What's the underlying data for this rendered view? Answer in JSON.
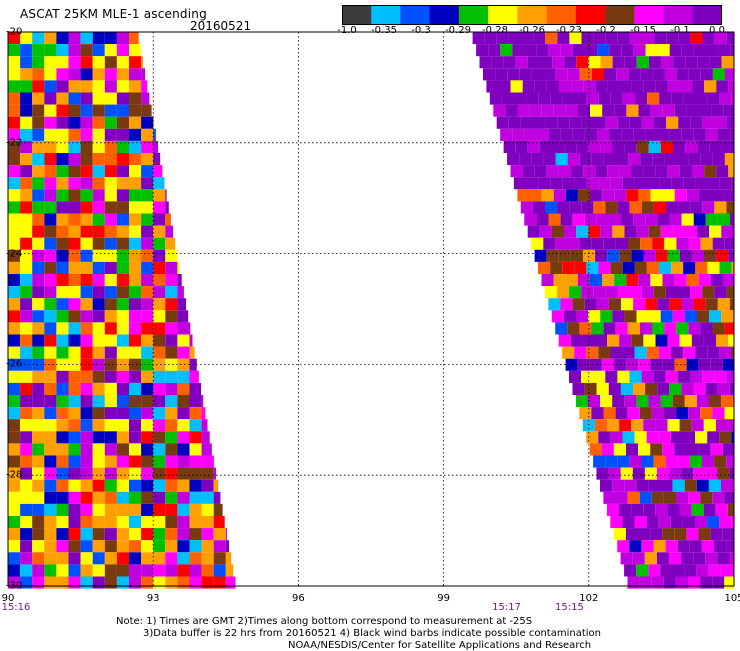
{
  "header": {
    "title": "ASCAT 25KM MLE-1 ascending",
    "date": "20160521"
  },
  "colorbar": {
    "colors": [
      "#3c3c3c",
      "#00bfff",
      "#0050ff",
      "#0000c0",
      "#00c000",
      "#ffff00",
      "#ffa000",
      "#ff6000",
      "#ff0000",
      "#7a3a10",
      "#ff00ff",
      "#c000e0",
      "#8000c0"
    ],
    "labels": [
      "-1.0",
      "-0.35",
      "-0.3",
      "-0.29",
      "-0.28",
      "-0.26",
      "-0.23",
      "-0.2",
      "-0.15",
      "-0.1",
      "0.0"
    ]
  },
  "map": {
    "lon_range": [
      90,
      105
    ],
    "lat_range": [
      -20,
      -30
    ],
    "x_ticks": [
      "90",
      "93",
      "96",
      "99",
      "102",
      "105"
    ],
    "y_ticks": [
      "-20",
      "-22",
      "-24",
      "-26",
      "-28",
      "-30"
    ],
    "times": [
      {
        "label": "15:16",
        "lon": 90
      },
      {
        "label": "15:17",
        "lon": 100.3
      },
      {
        "label": "15:15",
        "lon": 101.6
      }
    ],
    "swaths": [
      {
        "name": "left",
        "edge_lon_top": 92.7,
        "edge_lon_bottom": 94.7
      },
      {
        "name": "right",
        "edge_lon_top": 99.6,
        "edge_lon_bottom": 102.8
      }
    ]
  },
  "footer": {
    "line1": "Note: 1) Times are GMT 2)Times along bottom correspond to measurement at -25S",
    "line2": "3)Data buffer is 22 hrs from 20160521 4) Black wind barbs indicate possible contamination",
    "line3": "NOAA/NESDIS/Center for Satellite Applications and Research"
  }
}
